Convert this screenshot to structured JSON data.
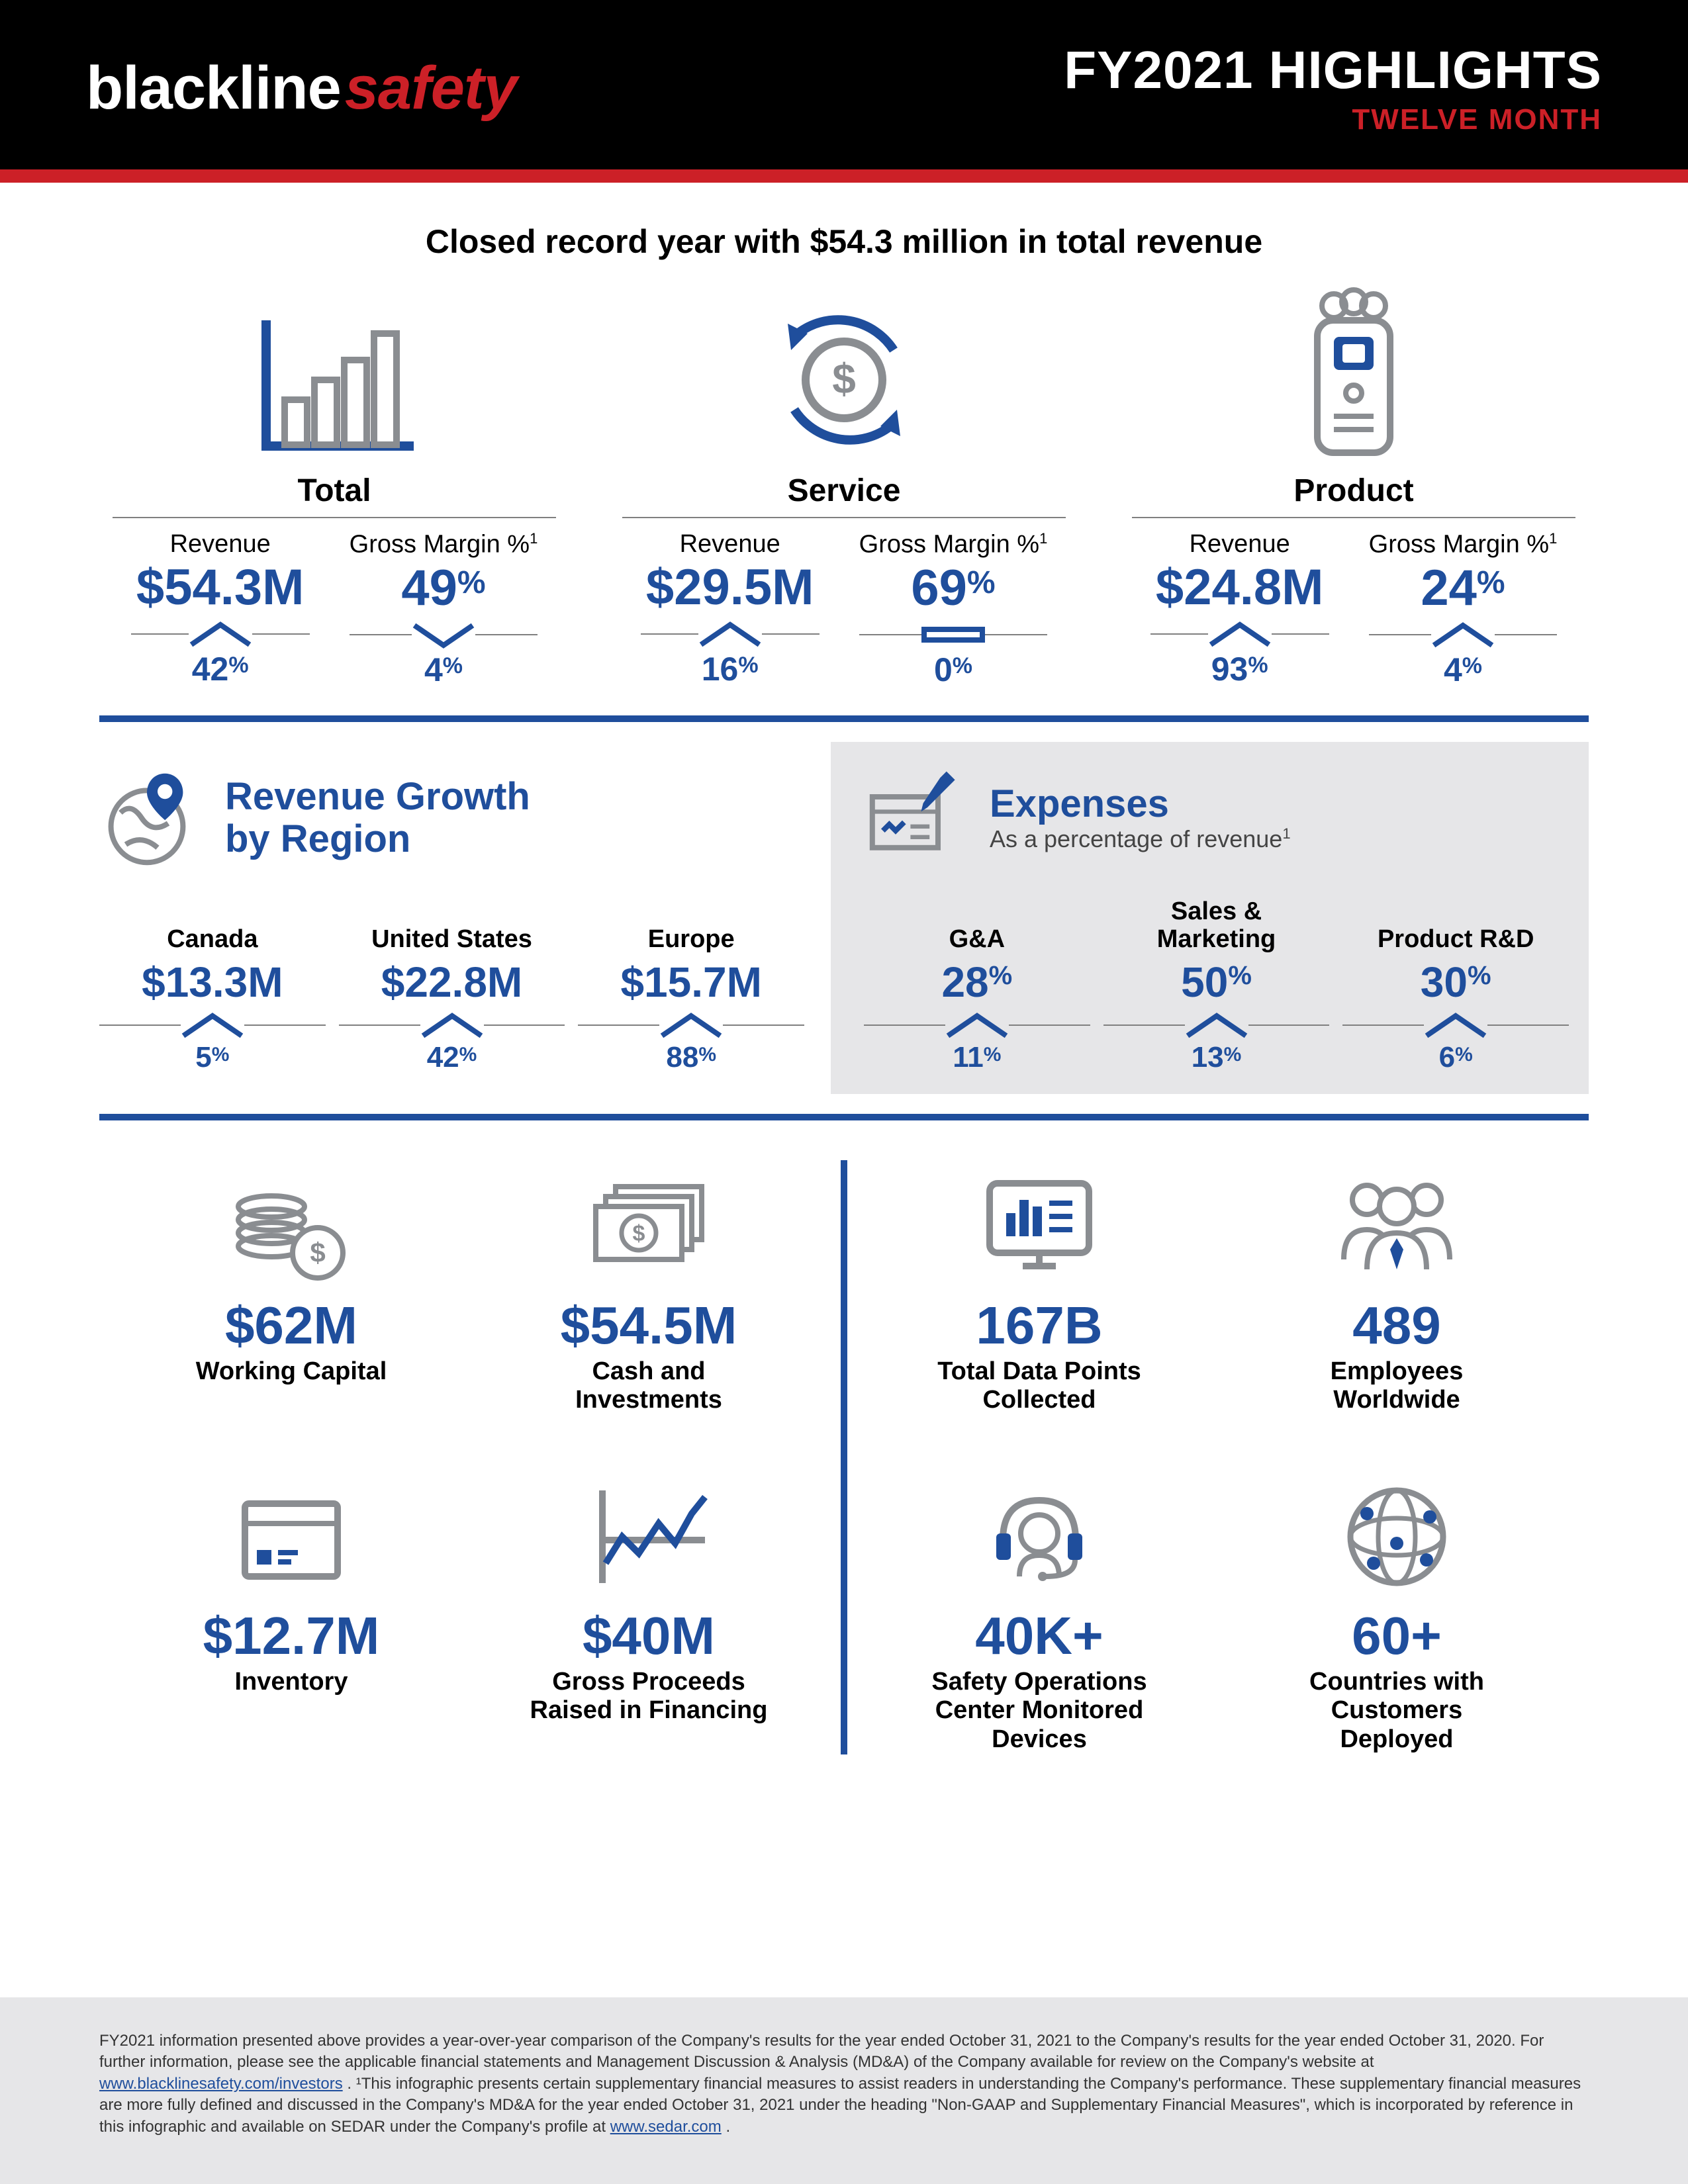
{
  "colors": {
    "accent": "#1f4e9c",
    "red": "#cc2027",
    "grey": "#808080",
    "iconGrey": "#8a8d91",
    "lightGrey": "#e6e6e8",
    "black": "#000000",
    "white": "#ffffff"
  },
  "header": {
    "logo_black": "blackline",
    "logo_safety": "safety",
    "title": "FY2021 HIGHLIGHTS",
    "subtitle": "TWELVE MONTH"
  },
  "tagline": "Closed record year with $54.3 million in total revenue",
  "categories": [
    {
      "name": "Total",
      "icon": "bar-chart",
      "revenue": {
        "label": "Revenue",
        "value": "$54.3M",
        "dir": "up",
        "delta": "42"
      },
      "margin": {
        "label": "Gross Margin %",
        "sup": "1",
        "value": "49",
        "pct": true,
        "dir": "down",
        "delta": "4"
      }
    },
    {
      "name": "Service",
      "icon": "dollar-cycle",
      "revenue": {
        "label": "Revenue",
        "value": "$29.5M",
        "dir": "up",
        "delta": "16"
      },
      "margin": {
        "label": "Gross Margin %",
        "sup": "1",
        "value": "69",
        "pct": true,
        "dir": "flat",
        "delta": "0"
      }
    },
    {
      "name": "Product",
      "icon": "device",
      "revenue": {
        "label": "Revenue",
        "value": "$24.8M",
        "dir": "up",
        "delta": "93"
      },
      "margin": {
        "label": "Gross Margin %",
        "sup": "1",
        "value": "24",
        "pct": true,
        "dir": "up",
        "delta": "4"
      }
    }
  ],
  "regions": {
    "title": "Revenue Growth\nby Region",
    "items": [
      {
        "label": "Canada",
        "value": "$13.3M",
        "dir": "up",
        "delta": "5"
      },
      {
        "label": "United States",
        "value": "$22.8M",
        "dir": "up",
        "delta": "42"
      },
      {
        "label": "Europe",
        "value": "$15.7M",
        "dir": "up",
        "delta": "88"
      }
    ]
  },
  "expenses": {
    "title": "Expenses",
    "subtitle": "As a percentage of revenue",
    "sup": "1",
    "items": [
      {
        "label": "G&A",
        "value": "28",
        "dir": "up",
        "delta": "11"
      },
      {
        "label": "Sales &\nMarketing",
        "value": "50",
        "dir": "up",
        "delta": "13"
      },
      {
        "label": "Product R&D",
        "value": "30",
        "dir": "up",
        "delta": "6"
      }
    ]
  },
  "stats_left": [
    {
      "icon": "coins",
      "value": "$62M",
      "label": "Working Capital"
    },
    {
      "icon": "cash",
      "value": "$54.5M",
      "label": "Cash and\nInvestments"
    },
    {
      "icon": "box",
      "value": "$12.7M",
      "label": "Inventory"
    },
    {
      "icon": "trend",
      "value": "$40M",
      "label": "Gross Proceeds\nRaised in Financing"
    }
  ],
  "stats_right": [
    {
      "icon": "monitor",
      "value": "167B",
      "label": "Total Data Points\nCollected"
    },
    {
      "icon": "people",
      "value": "489",
      "label": "Employees\nWorldwide"
    },
    {
      "icon": "headset",
      "value": "40K+",
      "label": "Safety Operations\nCenter Monitored\nDevices"
    },
    {
      "icon": "globe",
      "value": "60+",
      "label": "Countries with\nCustomers\nDeployed"
    }
  ],
  "footer": {
    "text_a": "FY2021 information presented above provides a year-over-year comparison of the Company's results for the year ended October 31, 2021 to the Company's results for the year ended October 31, 2020. For further information, please see the applicable financial statements and Management Discussion & Analysis (MD&A) of the Company available for review on the Company's website at ",
    "link1": "www.blacklinesafety.com/investors",
    "text_b": ". ¹This infographic presents certain supplementary financial measures to assist readers in understanding the Company's performance. These supplementary financial measures are more fully defined and discussed in the Company's MD&A for the year ended October 31, 2021 under the heading \"Non-GAAP and Supplementary Financial Measures\", which is incorporated by reference in this infographic and available on SEDAR under the Company's profile at ",
    "link2": "www.sedar.com",
    "text_c": "."
  }
}
